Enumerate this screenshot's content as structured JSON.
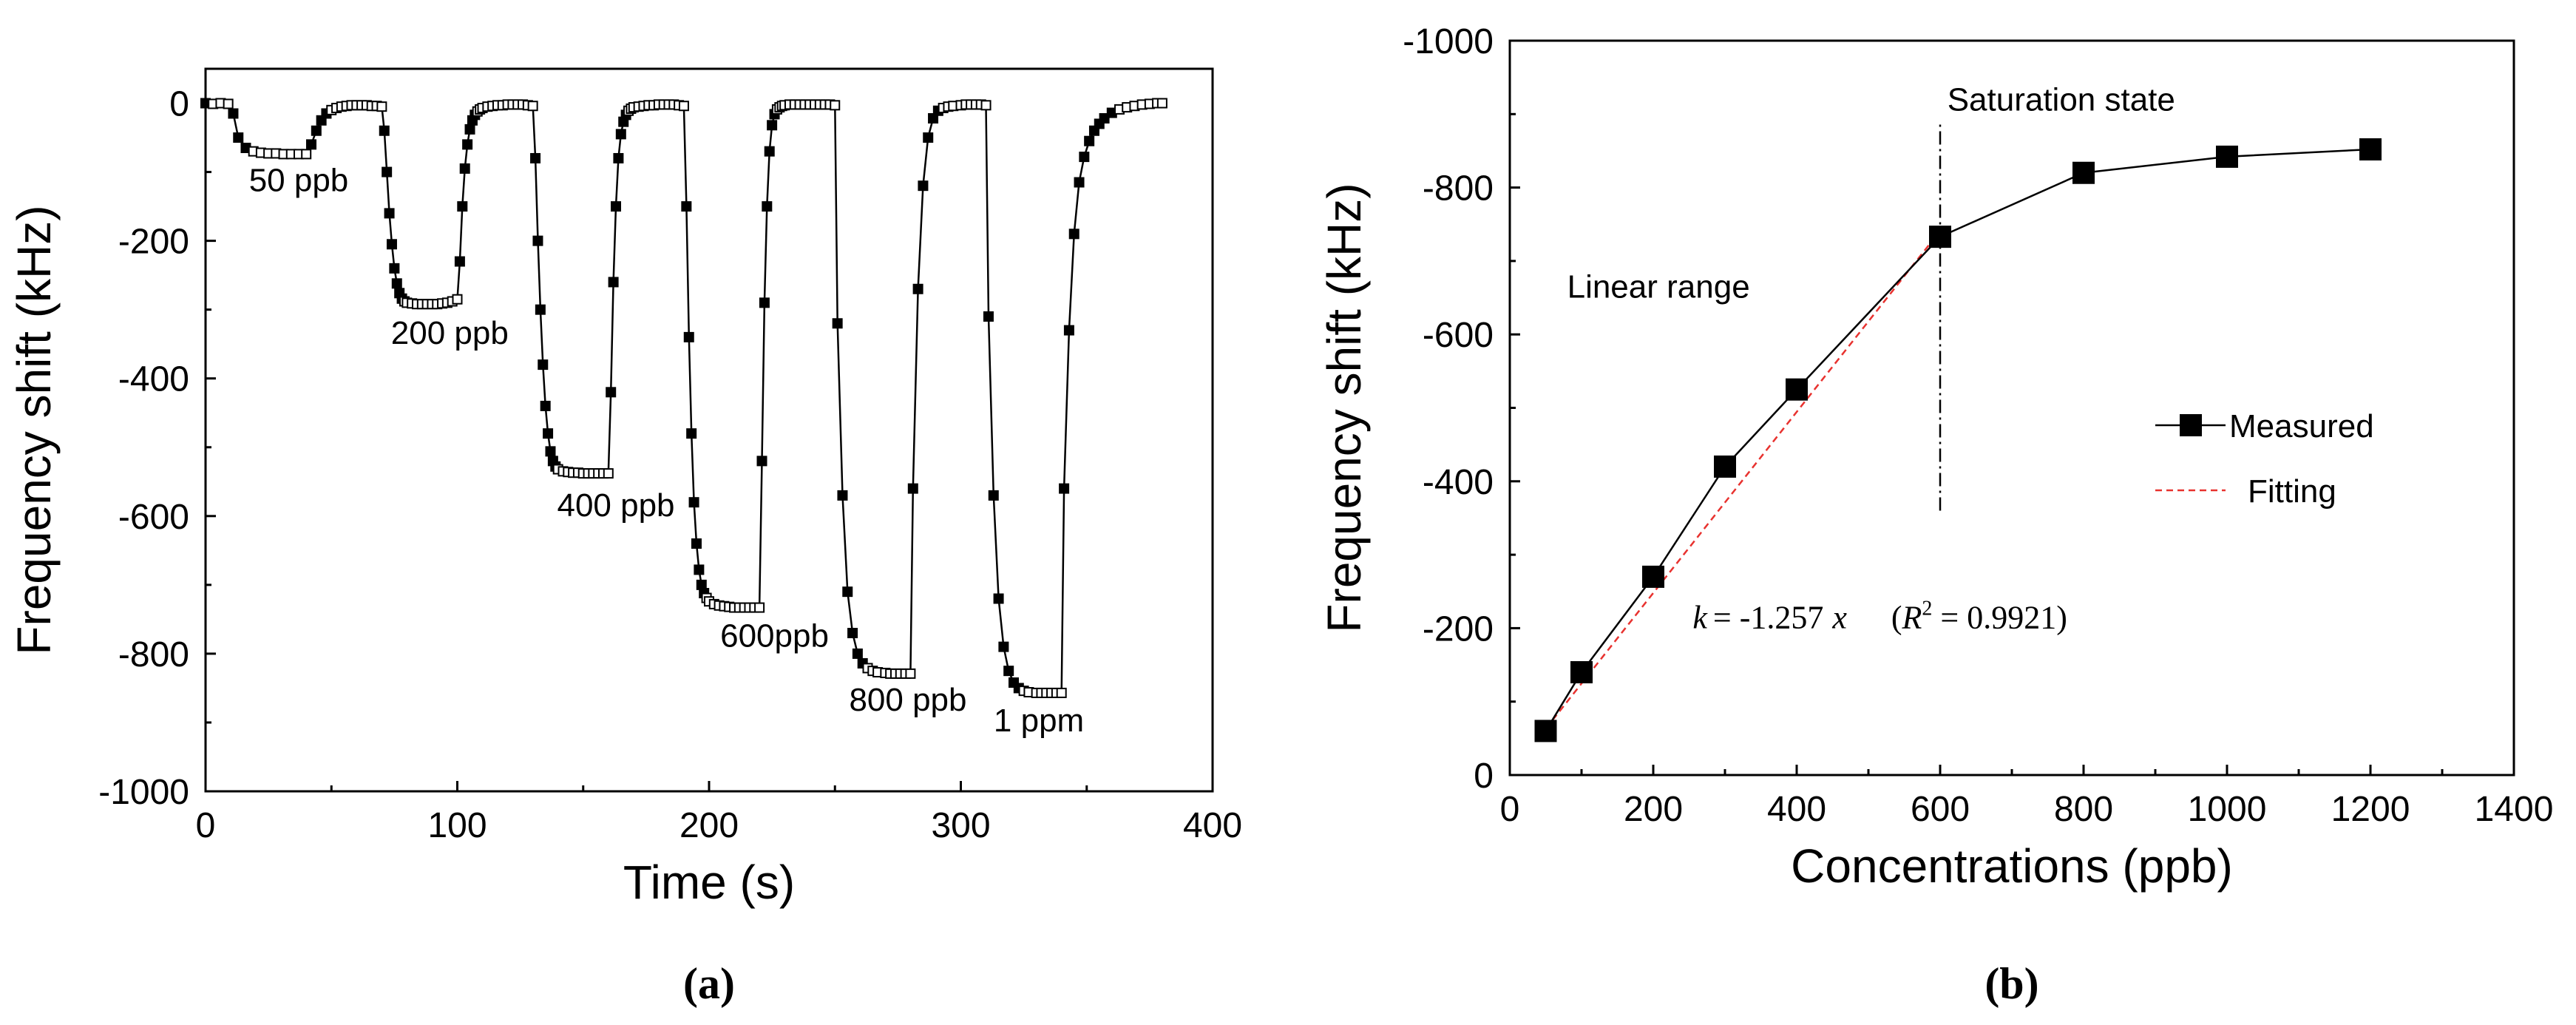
{
  "chart_data": [
    {
      "panel_label": "(a)",
      "type": "line",
      "xlabel": "Time (s)",
      "ylabel": "Frequency shift (kHz)",
      "xlim": [
        0,
        400
      ],
      "ylim": [
        -1000,
        50
      ],
      "xticks": [
        0,
        100,
        200,
        300,
        400
      ],
      "yticks": [
        0,
        -200,
        -400,
        -600,
        -800,
        -1000
      ],
      "grid": false,
      "marker": "square",
      "series": [
        {
          "name": "response",
          "x": [
            0,
            3,
            6,
            9,
            11,
            13,
            16,
            19,
            22,
            25,
            28,
            31,
            34,
            37,
            40,
            42,
            44,
            46,
            48,
            50,
            52,
            54,
            56,
            58,
            60,
            62,
            64,
            66,
            68,
            70,
            71,
            72,
            73,
            74,
            75,
            76,
            77,
            78,
            79,
            80,
            82,
            84,
            86,
            88,
            90,
            92,
            94,
            96,
            98,
            100,
            101,
            102,
            103,
            104,
            105,
            106,
            107,
            108,
            109,
            110,
            112,
            114,
            116,
            118,
            120,
            122,
            124,
            126,
            128,
            130,
            131,
            132,
            133,
            134,
            135,
            136,
            137,
            138,
            139,
            140,
            142,
            144,
            146,
            148,
            150,
            152,
            154,
            156,
            158,
            160,
            161,
            162,
            163,
            164,
            165,
            166,
            167,
            168,
            169,
            170,
            172,
            174,
            176,
            178,
            180,
            182,
            184,
            186,
            188,
            190,
            191,
            192,
            193,
            194,
            195,
            196,
            197,
            198,
            199,
            200,
            202,
            204,
            206,
            208,
            210,
            212,
            214,
            216,
            218,
            220,
            221,
            222,
            223,
            224,
            225,
            226,
            227,
            228,
            229,
            230,
            232,
            234,
            236,
            238,
            240,
            242,
            244,
            246,
            248,
            250,
            251,
            253,
            255,
            257,
            259,
            261,
            263,
            265,
            267,
            270,
            272,
            274,
            276,
            278,
            280,
            281,
            283,
            285,
            287,
            289,
            291,
            293,
            295,
            297,
            300,
            302,
            304,
            306,
            308,
            310,
            311,
            313,
            315,
            317,
            319,
            321,
            323,
            325,
            327,
            330,
            332,
            334,
            336,
            338,
            340,
            341,
            343,
            345,
            347,
            349,
            351,
            353,
            355,
            357,
            360,
            363,
            366,
            369,
            372,
            375,
            378,
            380
          ],
          "y": [
            0,
            -1,
            0,
            -1,
            -15,
            -50,
            -65,
            -70,
            -72,
            -73,
            -73,
            -74,
            -74,
            -74,
            -74,
            -60,
            -40,
            -25,
            -15,
            -10,
            -7,
            -5,
            -4,
            -3,
            -3,
            -3,
            -3,
            -4,
            -4,
            -5,
            -40,
            -100,
            -160,
            -205,
            -240,
            -262,
            -276,
            -284,
            -288,
            -290,
            -291,
            -292,
            -292,
            -292,
            -292,
            -292,
            -291,
            -290,
            -288,
            -285,
            -230,
            -150,
            -95,
            -60,
            -38,
            -25,
            -17,
            -12,
            -9,
            -7,
            -5,
            -4,
            -3,
            -3,
            -2,
            -2,
            -2,
            -2,
            -3,
            -4,
            -80,
            -200,
            -300,
            -380,
            -440,
            -480,
            -506,
            -520,
            -528,
            -532,
            -535,
            -536,
            -537,
            -537,
            -538,
            -538,
            -538,
            -538,
            -538,
            -538,
            -420,
            -260,
            -150,
            -80,
            -45,
            -27,
            -17,
            -11,
            -8,
            -6,
            -5,
            -4,
            -3,
            -3,
            -2,
            -2,
            -2,
            -2,
            -3,
            -4,
            -150,
            -340,
            -480,
            -580,
            -640,
            -678,
            -700,
            -712,
            -719,
            -724,
            -728,
            -730,
            -731,
            -732,
            -733,
            -733,
            -733,
            -733,
            -733,
            -733,
            -520,
            -290,
            -150,
            -70,
            -32,
            -16,
            -9,
            -6,
            -4,
            -3,
            -2,
            -2,
            -2,
            -2,
            -2,
            -2,
            -2,
            -2,
            -2,
            -3,
            -320,
            -570,
            -710,
            -770,
            -800,
            -814,
            -821,
            -825,
            -827,
            -828,
            -829,
            -829,
            -829,
            -829,
            -829,
            -560,
            -270,
            -120,
            -50,
            -22,
            -11,
            -7,
            -5,
            -4,
            -3,
            -2,
            -2,
            -2,
            -2,
            -3,
            -310,
            -570,
            -720,
            -790,
            -825,
            -842,
            -850,
            -854,
            -856,
            -857,
            -857,
            -857,
            -857,
            -857,
            -857,
            -560,
            -330,
            -190,
            -115,
            -78,
            -55,
            -40,
            -30,
            -22,
            -14,
            -9,
            -6,
            -4,
            -2,
            -1,
            0,
            0
          ]
        }
      ],
      "annotations": [
        {
          "text": "50 ppb",
          "x": 37,
          "y": -128
        },
        {
          "text": "200 ppb",
          "x": 97,
          "y": -350
        },
        {
          "text": "400 ppb",
          "x": 163,
          "y": -600
        },
        {
          "text": "600ppb",
          "x": 226,
          "y": -790
        },
        {
          "text": "800 ppb",
          "x": 279,
          "y": -883
        },
        {
          "text": "1 ppm",
          "x": 331,
          "y": -913
        }
      ]
    },
    {
      "panel_label": "(b)",
      "type": "line",
      "xlabel": "Concentrations (ppb)",
      "ylabel": "Frequency shift (kHz)",
      "xlim": [
        0,
        1400
      ],
      "ylim": [
        0,
        -1000
      ],
      "xticks": [
        0,
        200,
        400,
        600,
        800,
        1000,
        1200,
        1400
      ],
      "yticks": [
        0,
        -200,
        -400,
        -600,
        -800,
        -1000
      ],
      "grid": false,
      "series": [
        {
          "name": "Measured",
          "marker": "square",
          "x": [
            50,
            100,
            200,
            300,
            400,
            600,
            800,
            1000,
            1200
          ],
          "y": [
            -60,
            -140,
            -270,
            -420,
            -525,
            -733,
            -820,
            -842,
            -852
          ]
        },
        {
          "name": "Fitting",
          "style": "dashed",
          "color": "#e8322f",
          "x": [
            50,
            600
          ],
          "y": [
            -63,
            -741
          ]
        }
      ],
      "legend": [
        "Measured",
        "Fitting"
      ],
      "legend_position": "right",
      "vline": {
        "x": 600,
        "y_from": -360,
        "y_to": -890
      },
      "annotations": [
        {
          "name": "saturation-label",
          "text": "Saturation state",
          "x": 610,
          "y": -905
        },
        {
          "name": "linear-range-label",
          "text": "Linear range",
          "x": 80,
          "y": -650
        }
      ],
      "fit_equation": {
        "k_symbol": "k",
        "equals": "= -1.257",
        "x_symbol": "x",
        "r_open": "(",
        "r_symbol": "R",
        "r_exponent": "2",
        "r_value": " = 0.9921)",
        "x": 255,
        "y": -200
      }
    }
  ]
}
